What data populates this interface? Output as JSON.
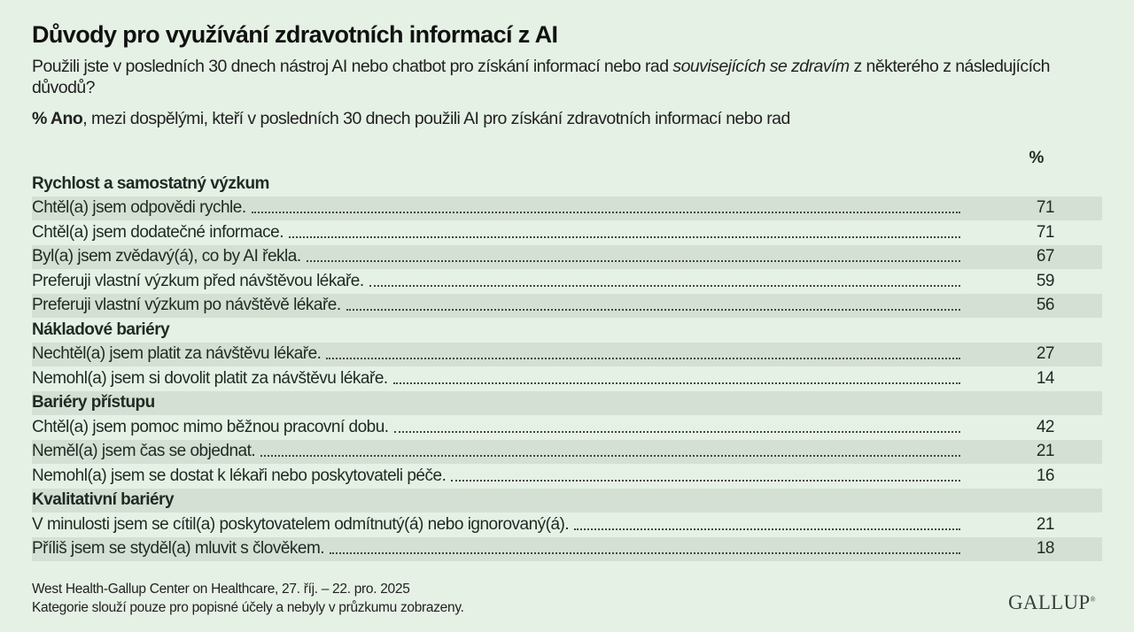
{
  "title": "Důvody pro využívání zdravotních informací z AI",
  "subtitle_part1": "Použili jste v posledních 30 dnech nástroj AI nebo chatbot pro získání informací nebo rad ",
  "subtitle_italic": "souvisejících se zdravím",
  "subtitle_part2": " z některého z následujících důvodů?",
  "note_bold": "% Ano",
  "note_rest": ", mezi dospělými, kteří v posledních 30 dnech použili AI pro získání zdravotních informací nebo rad",
  "footer_line1": "West Health-Gallup Center on Healthcare, 27. říj. – 22. pro. 2025",
  "footer_line2": "Kategorie slouží pouze pro popisné účely a nebyly v průzkumu zobrazeny.",
  "logo": "GALLUP",
  "colors": {
    "background": "#e5f1e5",
    "stripe": "#d5e0d5"
  },
  "chart_data": {
    "type": "table",
    "value_header": "%",
    "groups": [
      {
        "name": "Rychlost a samostatný výzkum",
        "items": [
          {
            "label": "Chtěl(a) jsem odpovědi rychle.",
            "value": 71
          },
          {
            "label": "Chtěl(a) jsem dodatečné informace.",
            "value": 71
          },
          {
            "label": "Byl(a) jsem zvědavý(á), co by AI řekla.",
            "value": 67
          },
          {
            "label": "Preferuji vlastní výzkum před návštěvou lékaře.",
            "value": 59
          },
          {
            "label": "Preferuji vlastní výzkum po návštěvě lékaře.",
            "value": 56
          }
        ]
      },
      {
        "name": "Nákladové bariéry",
        "items": [
          {
            "label": "Nechtěl(a) jsem platit za návštěvu lékaře.",
            "value": 27
          },
          {
            "label": "Nemohl(a) jsem si dovolit platit za návštěvu lékaře.",
            "value": 14
          }
        ]
      },
      {
        "name": "Bariéry přístupu",
        "items": [
          {
            "label": "Chtěl(a) jsem pomoc mimo běžnou pracovní dobu.",
            "value": 42
          },
          {
            "label": "Neměl(a) jsem čas se objednat.",
            "value": 21
          },
          {
            "label": "Nemohl(a) jsem se dostat k lékaři nebo poskytovateli péče.",
            "value": 16
          }
        ]
      },
      {
        "name": "Kvalitativní bariéry",
        "items": [
          {
            "label": "V minulosti jsem se cítil(a) poskytovatelem odmítnutý(á) nebo ignorovaný(á).",
            "value": 21
          },
          {
            "label": "Příliš jsem se styděl(a) mluvit s člověkem.",
            "value": 18
          }
        ]
      }
    ]
  }
}
